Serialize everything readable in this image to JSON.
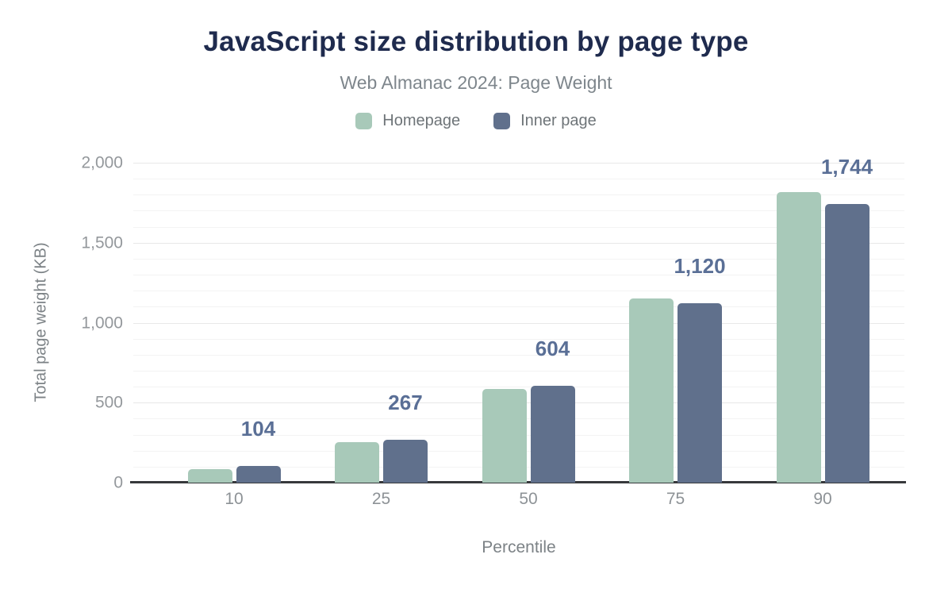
{
  "header": {
    "title": "JavaScript size distribution by page type",
    "subtitle": "Web Almanac 2024: Page Weight"
  },
  "legend": {
    "items": [
      {
        "label": "Homepage",
        "color": "#a8c9b9"
      },
      {
        "label": "Inner page",
        "color": "#60708c"
      }
    ]
  },
  "axes": {
    "xlabel": "Percentile",
    "ylabel": "Total page weight (KB)"
  },
  "chart_data": {
    "type": "bar",
    "title": "JavaScript size distribution by page type",
    "subtitle": "Web Almanac 2024: Page Weight",
    "xlabel": "Percentile",
    "ylabel": "Total page weight (KB)",
    "categories": [
      "10",
      "25",
      "50",
      "75",
      "90"
    ],
    "series": [
      {
        "name": "Homepage",
        "color": "#a8c9b9",
        "values": [
          84,
          252,
          585,
          1150,
          1815
        ]
      },
      {
        "name": "Inner page",
        "color": "#60708c",
        "values": [
          104,
          267,
          604,
          1120,
          1744
        ]
      }
    ],
    "data_labels": {
      "attached_to_series": "Inner page",
      "values": [
        "104",
        "267",
        "604",
        "1,120",
        "1,744"
      ],
      "color": "#5a6f96"
    },
    "ylim": [
      0,
      2000
    ],
    "yticks": [
      {
        "value": 0,
        "label": "0"
      },
      {
        "value": 500,
        "label": "500"
      },
      {
        "value": 1000,
        "label": "1,000"
      },
      {
        "value": 1500,
        "label": "1,500"
      },
      {
        "value": 2000,
        "label": "2,000"
      }
    ],
    "minor_grid_step": 100,
    "major_grid_step": 500,
    "grid": true,
    "legend_position": "top"
  },
  "colors": {
    "background": "#ffffff",
    "title": "#1f2b4e",
    "subtitle": "#7e868c",
    "legend_text": "#6e7478",
    "tick_text": "#94989c",
    "axis_title_text": "#7c8286",
    "axis_line": "#37393c",
    "major_grid": "#e8e8e8",
    "minor_grid": "#f3f3f3",
    "homepage_bar": "#a8c9b9",
    "inner_page_bar": "#60708c",
    "data_label": "#5a6f96"
  }
}
